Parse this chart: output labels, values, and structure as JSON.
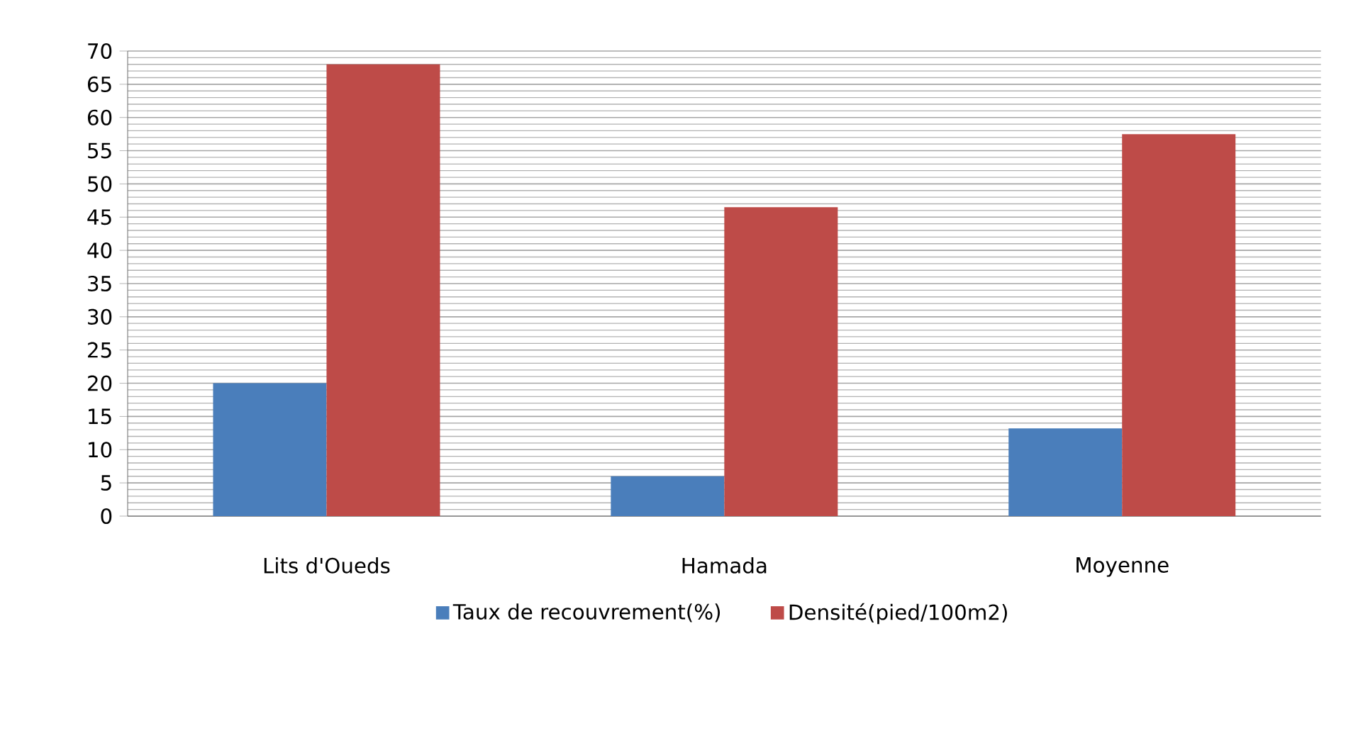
{
  "chart_data": {
    "type": "bar",
    "categories": [
      "Lits d'Oueds",
      "Hamada",
      "Moyenne"
    ],
    "series": [
      {
        "name": "Taux de recouvrement(%)",
        "color": "#4a7ebb",
        "values": [
          20,
          6,
          13.2
        ]
      },
      {
        "name": "Densité(pied/100m2)",
        "color": "#be4b48",
        "values": [
          68,
          46.5,
          57.5
        ]
      }
    ],
    "ylim": [
      0,
      70
    ],
    "yticks": [
      0,
      5,
      10,
      15,
      20,
      25,
      30,
      35,
      40,
      45,
      50,
      55,
      60,
      65,
      70
    ],
    "grid": "y",
    "legend": "bottom"
  }
}
